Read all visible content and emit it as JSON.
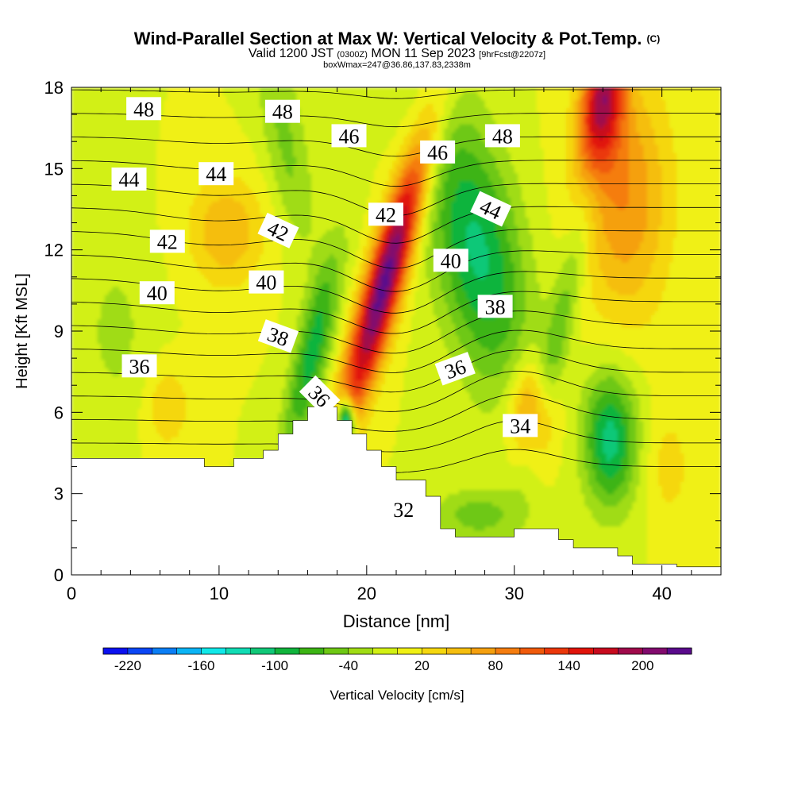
{
  "title": {
    "main": "Wind-Parallel Section at Max W: Vertical Velocity & Pot.Temp.",
    "copyright": "(C)",
    "valid_prefix": "Valid 1200 JST",
    "valid_utc": "(0300Z)",
    "valid_suffix": "MON 11 Sep 2023",
    "forecast": "[9hrFcst@2207z]",
    "box": "boxWmax=247@36.86,137.83,2338m"
  },
  "chart_data": {
    "type": "heatmap",
    "xlabel": "Distance [nm]",
    "ylabel": "Height [Kft MSL]",
    "xlim": [
      0,
      44
    ],
    "ylim": [
      0,
      18
    ],
    "x_ticks": [
      0,
      10,
      20,
      30,
      40
    ],
    "y_ticks": [
      0,
      3,
      6,
      9,
      12,
      15,
      18
    ],
    "colorbar": {
      "label": "Vertical Velocity [cm/s]",
      "min": -240,
      "max": 240,
      "step": 20,
      "tick_values": [
        -220,
        -160,
        -100,
        -40,
        20,
        80,
        140,
        200
      ],
      "tick_labels": [
        "-220",
        "-160",
        "-100",
        "-40",
        "20",
        "80",
        "140",
        "200"
      ],
      "colors": [
        "#0a10f0",
        "#0a46f5",
        "#0a7ef5",
        "#0ab4f5",
        "#10e8e8",
        "#10dcb4",
        "#10c878",
        "#10b43c",
        "#3cb414",
        "#6ec814",
        "#a0dc14",
        "#d2f014",
        "#f0f014",
        "#f5d70f",
        "#f5be0f",
        "#f5a00f",
        "#f57d0f",
        "#f05a0a",
        "#eb370a",
        "#e1140a",
        "#c80a1e",
        "#a00a4b",
        "#820a6e",
        "#5a0a8c"
      ]
    },
    "terrain": [
      [
        0,
        4.3
      ],
      [
        9,
        4.3
      ],
      [
        9,
        4.0
      ],
      [
        11,
        4.0
      ],
      [
        11,
        4.3
      ],
      [
        13,
        4.3
      ],
      [
        13,
        4.6
      ],
      [
        14,
        4.6
      ],
      [
        14,
        5.2
      ],
      [
        15,
        5.2
      ],
      [
        15,
        5.7
      ],
      [
        16,
        5.7
      ],
      [
        16,
        6.2
      ],
      [
        18,
        6.2
      ],
      [
        18,
        5.7
      ],
      [
        19,
        5.7
      ],
      [
        19,
        5.2
      ],
      [
        20,
        5.2
      ],
      [
        20,
        4.6
      ],
      [
        21,
        4.6
      ],
      [
        21,
        4.0
      ],
      [
        22,
        4.0
      ],
      [
        22,
        3.5
      ],
      [
        24,
        3.5
      ],
      [
        24,
        2.9
      ],
      [
        25,
        2.9
      ],
      [
        25,
        1.7
      ],
      [
        26,
        1.7
      ],
      [
        26,
        1.4
      ],
      [
        30,
        1.4
      ],
      [
        30,
        1.7
      ],
      [
        33,
        1.7
      ],
      [
        33,
        1.3
      ],
      [
        34,
        1.3
      ],
      [
        34,
        1.0
      ],
      [
        37,
        1.0
      ],
      [
        37,
        0.7
      ],
      [
        38,
        0.7
      ],
      [
        38,
        0.4
      ],
      [
        41,
        0.4
      ],
      [
        41,
        0.3
      ],
      [
        44,
        0.3
      ]
    ],
    "velocity_features": [
      {
        "x": 21.2,
        "y": 10.8,
        "sx": 1.3,
        "sy": 5.2,
        "tilt": 0.5,
        "value": 230
      },
      {
        "x": 27.5,
        "y": 12.0,
        "sx": 3.0,
        "sy": 5.0,
        "tilt": -0.3,
        "value": -105
      },
      {
        "x": 16.3,
        "y": 8.2,
        "sx": 1.2,
        "sy": 3.8,
        "tilt": 0.4,
        "value": -90
      },
      {
        "x": 18.6,
        "y": 5.7,
        "sx": 0.6,
        "sy": 0.8,
        "tilt": 0.0,
        "value": -200
      },
      {
        "x": 36.5,
        "y": 5.0,
        "sx": 1.8,
        "sy": 2.5,
        "tilt": 0.0,
        "value": -110
      },
      {
        "x": 31.2,
        "y": 6.0,
        "sx": 1.5,
        "sy": 1.8,
        "tilt": 0.0,
        "value": 95
      },
      {
        "x": 36.0,
        "y": 17.6,
        "sx": 1.4,
        "sy": 2.6,
        "tilt": 0.2,
        "value": 170
      },
      {
        "x": 37.5,
        "y": 14.0,
        "sx": 3.0,
        "sy": 4.5,
        "tilt": 0.0,
        "value": 80
      },
      {
        "x": 10.5,
        "y": 12.7,
        "sx": 2.5,
        "sy": 2.0,
        "tilt": 0.0,
        "value": 60
      },
      {
        "x": 14.5,
        "y": 16.0,
        "sx": 1.5,
        "sy": 4.0,
        "tilt": -0.3,
        "value": -45
      },
      {
        "x": 33.0,
        "y": 9.0,
        "sx": 1.0,
        "sy": 5.0,
        "tilt": 0.4,
        "value": -50
      },
      {
        "x": 27.5,
        "y": 2.2,
        "sx": 3.0,
        "sy": 1.0,
        "tilt": 0.0,
        "value": -50
      },
      {
        "x": 40.5,
        "y": 4.0,
        "sx": 1.5,
        "sy": 2.0,
        "tilt": 0.0,
        "value": 30
      },
      {
        "x": 3.0,
        "y": 9.0,
        "sx": 2.5,
        "sy": 3.5,
        "tilt": 0.0,
        "value": -25
      },
      {
        "x": 6.5,
        "y": 6.2,
        "sx": 1.5,
        "sy": 1.5,
        "tilt": 0.0,
        "value": 40
      }
    ],
    "theta_isolines": [
      32,
      33,
      34,
      35,
      36,
      37,
      38,
      39,
      40,
      41,
      42,
      43,
      44,
      45,
      46,
      47,
      48,
      49
    ],
    "theta_labels": [
      {
        "text": "48",
        "x": 4.9,
        "y": 17.2,
        "angle": 0
      },
      {
        "text": "48",
        "x": 14.3,
        "y": 17.1,
        "angle": 0
      },
      {
        "text": "46",
        "x": 18.8,
        "y": 16.2,
        "angle": 0
      },
      {
        "text": "46",
        "x": 24.8,
        "y": 15.6,
        "angle": 0
      },
      {
        "text": "48",
        "x": 29.2,
        "y": 16.2,
        "angle": 0
      },
      {
        "text": "44",
        "x": 3.9,
        "y": 14.6,
        "angle": 0
      },
      {
        "text": "44",
        "x": 9.8,
        "y": 14.8,
        "angle": 0
      },
      {
        "text": "42",
        "x": 14.0,
        "y": 12.7,
        "angle": 25
      },
      {
        "text": "42",
        "x": 21.3,
        "y": 13.3,
        "angle": 0
      },
      {
        "text": "44",
        "x": 28.4,
        "y": 13.5,
        "angle": 25
      },
      {
        "text": "42",
        "x": 6.5,
        "y": 12.3,
        "angle": 0
      },
      {
        "text": "40",
        "x": 13.2,
        "y": 10.8,
        "angle": 0
      },
      {
        "text": "40",
        "x": 25.7,
        "y": 11.6,
        "angle": 0
      },
      {
        "text": "40",
        "x": 5.8,
        "y": 10.4,
        "angle": 0
      },
      {
        "text": "38",
        "x": 14.0,
        "y": 8.8,
        "angle": 20
      },
      {
        "text": "38",
        "x": 28.7,
        "y": 9.9,
        "angle": 0
      },
      {
        "text": "36",
        "x": 4.6,
        "y": 7.7,
        "angle": 0
      },
      {
        "text": "36",
        "x": 26.0,
        "y": 7.6,
        "angle": -20
      },
      {
        "text": "36",
        "x": 16.8,
        "y": 6.6,
        "angle": 45
      },
      {
        "text": "34",
        "x": 30.4,
        "y": 5.5,
        "angle": 0
      },
      {
        "text": "32",
        "x": 22.5,
        "y": 2.4,
        "angle": 0
      }
    ]
  }
}
